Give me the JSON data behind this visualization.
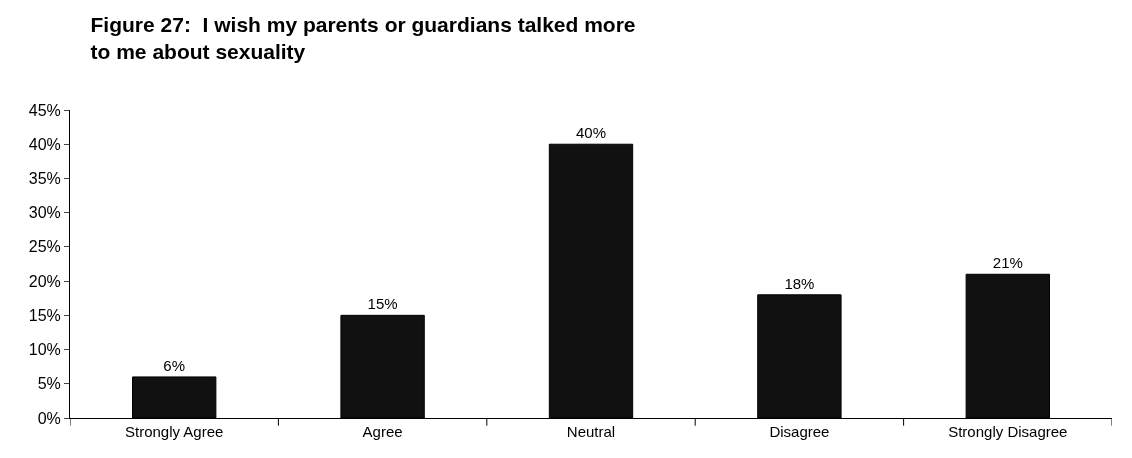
{
  "chart_data": {
    "type": "bar",
    "title": "Figure 27:  I wish my parents or guardians talked more to me about sexuality",
    "categories": [
      "Strongly Agree",
      "Agree",
      "Neutral",
      "Disagree",
      "Strongly Disagree"
    ],
    "values": [
      6,
      15,
      40,
      18,
      21
    ],
    "value_labels": [
      "6%",
      "15%",
      "40%",
      "18%",
      "21%"
    ],
    "color": "#111111",
    "ylim": [
      0,
      45
    ],
    "yticks": [
      {
        "value": 0,
        "label": "0%"
      },
      {
        "value": 5,
        "label": "5%"
      },
      {
        "value": 10,
        "label": "10%"
      },
      {
        "value": 15,
        "label": "15%"
      },
      {
        "value": 20,
        "label": "20%"
      },
      {
        "value": 25,
        "label": "25%"
      },
      {
        "value": 30,
        "label": "30%"
      },
      {
        "value": 35,
        "label": "35%"
      },
      {
        "value": 40,
        "label": "40%"
      },
      {
        "value": 45,
        "label": "45%"
      }
    ],
    "legend": false
  }
}
